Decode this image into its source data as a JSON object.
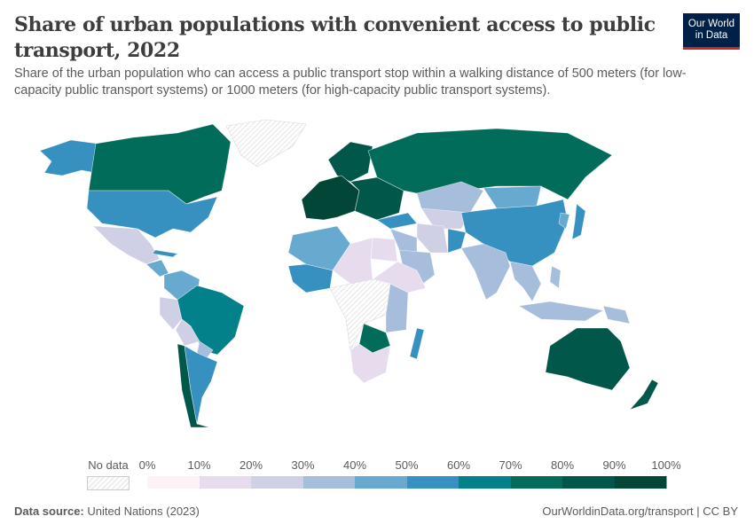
{
  "header": {
    "title": "Share of urban populations with convenient access to public transport, 2022",
    "subtitle": "Share of the urban population who can access a public transport stop within a walking distance of 500 meters (for low-capacity public transport systems) or 1000 meters (for high-capacity public transport systems).",
    "logo_line1": "Our World",
    "logo_line2": "in Data",
    "logo_colors": {
      "bg": "#002147",
      "stripe": "#ce261e"
    }
  },
  "legend": {
    "no_data_label": "No data",
    "ticks": [
      "0%",
      "10%",
      "20%",
      "30%",
      "40%",
      "50%",
      "60%",
      "70%",
      "80%",
      "90%",
      "100%"
    ],
    "bins": [
      {
        "range": "0-10%",
        "color": "#fdf2f8"
      },
      {
        "range": "10-20%",
        "color": "#e7dcee"
      },
      {
        "range": "20-30%",
        "color": "#cfd0e6"
      },
      {
        "range": "30-40%",
        "color": "#a6bddb"
      },
      {
        "range": "40-50%",
        "color": "#67a9cf"
      },
      {
        "range": "50-60%",
        "color": "#3690c0"
      },
      {
        "range": "60-70%",
        "color": "#02818a"
      },
      {
        "range": "70-80%",
        "color": "#016c59"
      },
      {
        "range": "80-90%",
        "color": "#01574a"
      },
      {
        "range": "90-100%",
        "color": "#014636"
      }
    ]
  },
  "map": {
    "no_data_color": "#f2f2f2",
    "values": {
      "canada": 7,
      "alaska": 5,
      "greenland": null,
      "usa": 5,
      "mexico": 2,
      "central_america": 4,
      "cuba": 5,
      "colombia_venezuela": 4,
      "brazil": 6,
      "peru": 2,
      "bolivia": 2,
      "paraguay": 3,
      "argentina": 5,
      "chile": 8,
      "western_europe": 9,
      "northern_europe": 8,
      "eastern_europe": 8,
      "russia": 7,
      "turkey": 5,
      "kazakhstan": 3,
      "middle_east": 3,
      "iran": 2,
      "afghanistan": 5,
      "central_asia": 2,
      "china": 5,
      "mongolia": 4,
      "india": 3,
      "southeast_asia": 3,
      "japan": 5,
      "korea": 4,
      "indonesia": 3,
      "philippines": 3,
      "png": 3,
      "north_africa_west": 4,
      "sahel": 1,
      "west_africa_coast": 5,
      "central_africa": null,
      "east_africa": 1,
      "kenya_tanzania": 3,
      "southern_africa": 1,
      "zambia_zimbabwe": 7,
      "madagascar": 5,
      "egypt": 1,
      "arabia": 3,
      "australia": 8,
      "new_zealand": 8
    }
  },
  "footer": {
    "source_label": "Data source:",
    "source": "United Nations (2023)",
    "link": "OurWorldinData.org/transport | CC BY"
  }
}
